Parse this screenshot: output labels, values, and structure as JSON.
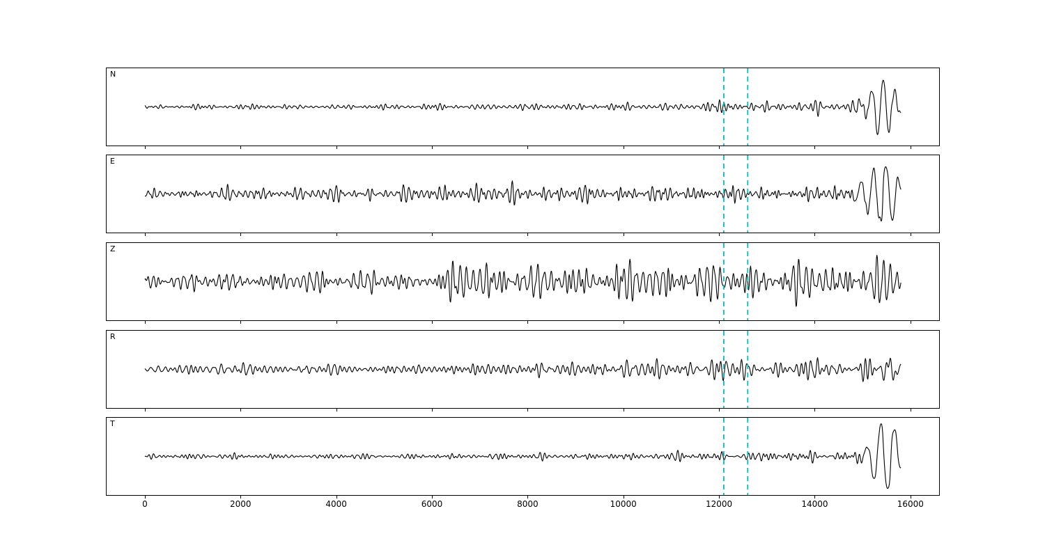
{
  "figure": {
    "background": "#ffffff",
    "trace_color": "#000000",
    "axis_color": "#000000",
    "pick_line_color": "#00bfbf"
  },
  "chart_data": {
    "type": "line",
    "subtype": "seismogram-multipanel",
    "title": "",
    "xlabel": "",
    "ylabel": "",
    "grid": false,
    "legend": false,
    "xlim": [
      -800,
      16600
    ],
    "x_ticks": [
      0,
      2000,
      4000,
      6000,
      8000,
      10000,
      12000,
      14000,
      16000
    ],
    "x_tick_labels": [
      "0",
      "2000",
      "4000",
      "6000",
      "8000",
      "10000",
      "12000",
      "14000",
      "16000"
    ],
    "pick_lines_x": [
      12100,
      12600
    ],
    "trace_x_start": 0,
    "trace_x_end": 15800,
    "sample_step": 10,
    "panels": [
      {
        "label": "N",
        "seed": 7,
        "hf_envelope": [
          [
            0,
            2.2
          ],
          [
            1200,
            2.8
          ],
          [
            2400,
            2.5
          ],
          [
            3600,
            2.6
          ],
          [
            4800,
            2.6
          ],
          [
            6000,
            2.8
          ],
          [
            7000,
            3.2
          ],
          [
            7600,
            4.2
          ],
          [
            8200,
            3.0
          ],
          [
            9000,
            3.2
          ],
          [
            10000,
            3.6
          ],
          [
            10500,
            4.8
          ],
          [
            11000,
            4.0
          ],
          [
            11700,
            5.0
          ],
          [
            12200,
            5.5
          ],
          [
            12700,
            5.0
          ],
          [
            13200,
            5.5
          ],
          [
            13700,
            5.0
          ],
          [
            13960,
            6.0
          ],
          [
            14050,
            13
          ],
          [
            14160,
            6.5
          ],
          [
            14600,
            7
          ],
          [
            15000,
            9
          ],
          [
            15250,
            10
          ],
          [
            15500,
            7
          ],
          [
            15800,
            4
          ]
        ],
        "lf_envelope": [
          [
            14800,
            0
          ],
          [
            15100,
            8
          ],
          [
            15350,
            40
          ],
          [
            15600,
            34
          ],
          [
            15800,
            8
          ]
        ]
      },
      {
        "label": "E",
        "seed": 13,
        "hf_envelope": [
          [
            0,
            5.5
          ],
          [
            800,
            6.5
          ],
          [
            1600,
            8.5
          ],
          [
            2400,
            7.5
          ],
          [
            3200,
            7
          ],
          [
            4000,
            8
          ],
          [
            4800,
            6.5
          ],
          [
            5600,
            7.5
          ],
          [
            6400,
            9.5
          ],
          [
            7000,
            8.5
          ],
          [
            7600,
            10.5
          ],
          [
            8400,
            8.5
          ],
          [
            9200,
            9.5
          ],
          [
            10000,
            9
          ],
          [
            10600,
            10.5
          ],
          [
            11200,
            9.5
          ],
          [
            11800,
            11
          ],
          [
            12300,
            13
          ],
          [
            12800,
            10.5
          ],
          [
            13300,
            10
          ],
          [
            13800,
            10
          ],
          [
            13960,
            11
          ],
          [
            14060,
            22
          ],
          [
            14180,
            12
          ],
          [
            14600,
            11
          ],
          [
            15000,
            12.5
          ],
          [
            15300,
            14
          ],
          [
            15600,
            12
          ],
          [
            15800,
            6
          ]
        ],
        "lf_envelope": [
          [
            14700,
            0
          ],
          [
            15050,
            14
          ],
          [
            15350,
            30
          ],
          [
            15600,
            30
          ],
          [
            15800,
            9
          ]
        ]
      },
      {
        "label": "Z",
        "seed": 29,
        "hf_envelope": [
          [
            0,
            10
          ],
          [
            600,
            12
          ],
          [
            1200,
            13
          ],
          [
            1800,
            13
          ],
          [
            2400,
            12
          ],
          [
            3000,
            11
          ],
          [
            3600,
            13
          ],
          [
            4200,
            11
          ],
          [
            4600,
            17
          ],
          [
            4750,
            22
          ],
          [
            5000,
            13
          ],
          [
            5600,
            12
          ],
          [
            6100,
            15
          ],
          [
            6450,
            26
          ],
          [
            6700,
            30
          ],
          [
            7000,
            20
          ],
          [
            7400,
            25
          ],
          [
            7800,
            22
          ],
          [
            8200,
            25
          ],
          [
            8600,
            23
          ],
          [
            9000,
            25
          ],
          [
            9500,
            23
          ],
          [
            10000,
            25
          ],
          [
            10500,
            24
          ],
          [
            11000,
            25
          ],
          [
            11500,
            23
          ],
          [
            12000,
            25
          ],
          [
            12500,
            24
          ],
          [
            13000,
            23
          ],
          [
            13500,
            25
          ],
          [
            14000,
            24
          ],
          [
            14500,
            25
          ],
          [
            15000,
            25
          ],
          [
            15300,
            28
          ],
          [
            15600,
            26
          ],
          [
            15800,
            20
          ]
        ],
        "lf_envelope": [
          [
            0,
            0
          ]
        ]
      },
      {
        "label": "R",
        "seed": 41,
        "hf_envelope": [
          [
            0,
            4.5
          ],
          [
            700,
            5.5
          ],
          [
            1400,
            8
          ],
          [
            2100,
            7
          ],
          [
            2800,
            6
          ],
          [
            3400,
            6
          ],
          [
            4000,
            7
          ],
          [
            4600,
            7.5
          ],
          [
            5200,
            6.5
          ],
          [
            5800,
            7
          ],
          [
            6400,
            8
          ],
          [
            6900,
            10.5
          ],
          [
            7300,
            9.5
          ],
          [
            7700,
            8.5
          ],
          [
            8200,
            9.5
          ],
          [
            8700,
            8.5
          ],
          [
            9200,
            9.5
          ],
          [
            9700,
            8.5
          ],
          [
            10200,
            10.5
          ],
          [
            10450,
            13
          ],
          [
            10750,
            9.5
          ],
          [
            11300,
            10.5
          ],
          [
            11800,
            11
          ],
          [
            12300,
            13.5
          ],
          [
            12700,
            11
          ],
          [
            13200,
            10
          ],
          [
            13700,
            9.5
          ],
          [
            13960,
            11
          ],
          [
            14060,
            26
          ],
          [
            14200,
            12
          ],
          [
            14700,
            11.5
          ],
          [
            15100,
            12.5
          ],
          [
            15450,
            14
          ],
          [
            15700,
            10
          ],
          [
            15800,
            7
          ]
        ],
        "lf_envelope": [
          [
            14800,
            0
          ],
          [
            15150,
            9
          ],
          [
            15400,
            18
          ],
          [
            15650,
            13
          ],
          [
            15800,
            5
          ]
        ]
      },
      {
        "label": "T",
        "seed": 57,
        "hf_envelope": [
          [
            0,
            2.2
          ],
          [
            900,
            3.2
          ],
          [
            1600,
            3.6
          ],
          [
            2300,
            3.0
          ],
          [
            3200,
            2.8
          ],
          [
            4200,
            2.9
          ],
          [
            5200,
            3.0
          ],
          [
            6200,
            3.1
          ],
          [
            7000,
            3.5
          ],
          [
            7600,
            4.0
          ],
          [
            8300,
            3.3
          ],
          [
            9200,
            3.6
          ],
          [
            10000,
            4.5
          ],
          [
            10600,
            5.0
          ],
          [
            11300,
            4.6
          ],
          [
            11900,
            5.0
          ],
          [
            12500,
            5.2
          ],
          [
            13100,
            6.0
          ],
          [
            13600,
            5.6
          ],
          [
            13940,
            8.0
          ],
          [
            14120,
            6.0
          ],
          [
            14700,
            6.2
          ],
          [
            15100,
            6.5
          ],
          [
            15500,
            5
          ],
          [
            15800,
            4
          ]
        ],
        "lf_envelope": [
          [
            14800,
            0
          ],
          [
            15100,
            8
          ],
          [
            15400,
            40
          ],
          [
            15600,
            42
          ],
          [
            15800,
            10
          ]
        ]
      }
    ]
  }
}
